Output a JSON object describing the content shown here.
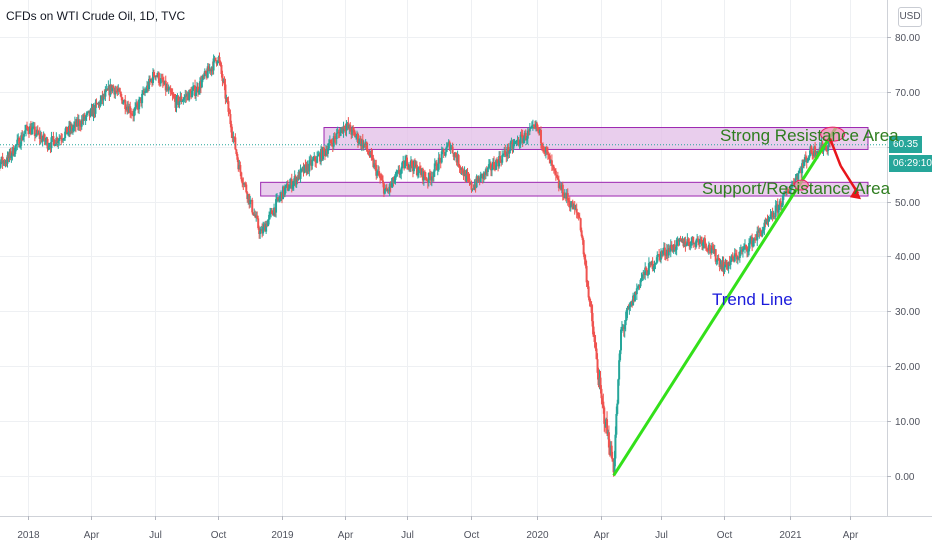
{
  "header": {
    "title": "CFDs on WTI Crude Oil, 1D, TVC"
  },
  "currency": "USD",
  "price_tags": {
    "last_price": "60.35",
    "countdown": "06:29:10",
    "last_color": "#26a69a",
    "countdown_color": "#26a69a"
  },
  "annotations": {
    "strong_resistance": "Strong Resistance Area",
    "support_resistance": "Support/Resistance Area",
    "trend_line": "Trend Line"
  },
  "colors": {
    "up": "#26a69a",
    "down": "#ef5350",
    "zone_fill": "#e1bee7",
    "zone_border": "#9c27b0",
    "trend_line": "#33e01a",
    "arrow": "#e8151b",
    "annotation_green": "#2e7d1f",
    "annotation_blue": "#1a1adb"
  },
  "chart_data": {
    "type": "candlestick",
    "title": "CFDs on WTI Crude Oil, 1D, TVC",
    "x_tick_labels": [
      "2018",
      "Apr",
      "Jul",
      "Oct",
      "2019",
      "Apr",
      "Jul",
      "Oct",
      "2020",
      "Apr",
      "Jul",
      "Oct",
      "2021",
      "Apr"
    ],
    "x_tick_dates": [
      "2018-01",
      "2018-04",
      "2018-07",
      "2018-10",
      "2019-01",
      "2019-04",
      "2019-07",
      "2019-10",
      "2020-01",
      "2020-04",
      "2020-07",
      "2020-10",
      "2021-01",
      "2021-04"
    ],
    "y_tick_labels": [
      "80.00",
      "70.00",
      "60.00",
      "50.00",
      "40.00",
      "30.00",
      "20.00",
      "10.00",
      "0.00"
    ],
    "ylim": [
      -7,
      84
    ],
    "xlim": [
      "2017-11",
      "2021-05"
    ],
    "series": [
      {
        "name": "WTI",
        "points": [
          [
            "2017-11",
            56.5
          ],
          [
            "2017-12",
            57.5
          ],
          [
            "2018-01",
            63.5
          ],
          [
            "2018-02",
            60.5
          ],
          [
            "2018-03",
            63
          ],
          [
            "2018-04",
            66
          ],
          [
            "2018-05",
            71
          ],
          [
            "2018-06",
            66
          ],
          [
            "2018-07",
            73.5
          ],
          [
            "2018-08",
            68
          ],
          [
            "2018-09",
            70.5
          ],
          [
            "2018-10",
            76.5
          ],
          [
            "2018-11",
            56
          ],
          [
            "2018-12",
            44
          ],
          [
            "2019-01",
            51.5
          ],
          [
            "2019-02",
            55.5
          ],
          [
            "2019-03",
            59
          ],
          [
            "2019-04",
            64
          ],
          [
            "2019-05",
            60
          ],
          [
            "2019-06",
            51.5
          ],
          [
            "2019-07",
            57.5
          ],
          [
            "2019-08",
            54
          ],
          [
            "2019-09",
            60.5
          ],
          [
            "2019-10",
            52.5
          ],
          [
            "2019-11",
            56.5
          ],
          [
            "2019-12",
            60.5
          ],
          [
            "2020-01",
            63.5
          ],
          [
            "2020-02",
            53
          ],
          [
            "2020-03",
            47
          ],
          [
            "2020-04",
            14
          ],
          [
            "2020-04-20",
            1.5
          ],
          [
            "2020-05",
            26
          ],
          [
            "2020-06",
            36
          ],
          [
            "2020-07",
            40.5
          ],
          [
            "2020-08",
            42.5
          ],
          [
            "2020-09",
            43
          ],
          [
            "2020-10",
            38
          ],
          [
            "2020-11",
            41.5
          ],
          [
            "2020-12",
            46
          ],
          [
            "2021-01",
            52.5
          ],
          [
            "2021-02",
            59
          ],
          [
            "2021-03",
            60.35
          ]
        ]
      }
    ],
    "last_price": 60.35,
    "zones": [
      {
        "name": "Strong Resistance Area",
        "from": "2019-03",
        "to": "2021-03",
        "low": 59.5,
        "high": 63.5
      },
      {
        "name": "Support/Resistance Area",
        "from": "2018-12",
        "to": "2021-03",
        "low": 51.0,
        "high": 53.5
      }
    ],
    "trend_line": {
      "name": "Trend Line",
      "from": [
        "2020-04-20",
        0
      ],
      "to": [
        "2021-03-10",
        63.5
      ]
    },
    "arrow": {
      "from": [
        "2021-03-01",
        61.5
      ],
      "via": [
        "2021-03-08",
        56.5
      ],
      "to": [
        "2021-03-25",
        51.5
      ]
    },
    "grid": true,
    "legend": "none"
  }
}
